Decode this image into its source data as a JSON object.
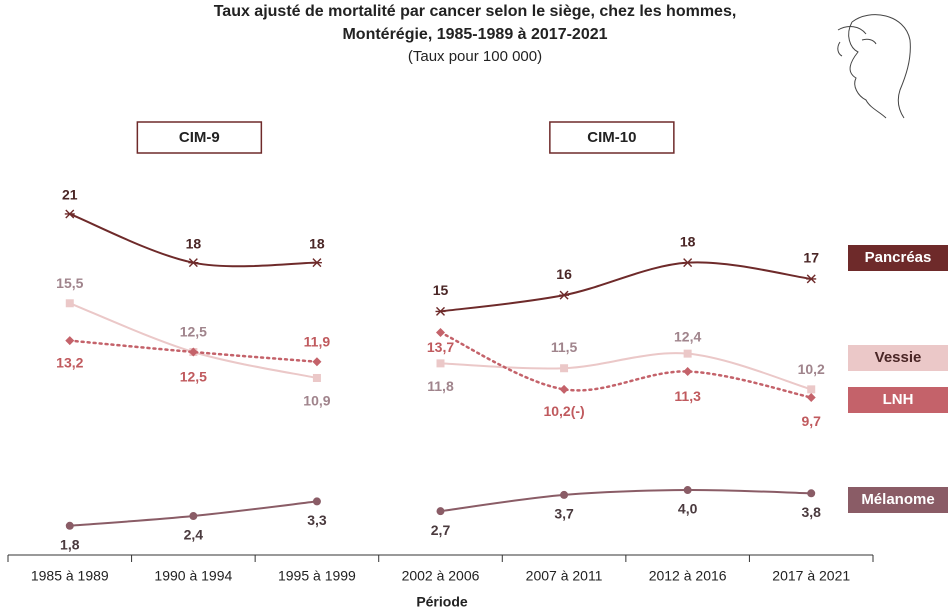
{
  "chart_data": {
    "type": "line",
    "title": [
      "Taux ajusté de mortalité par cancer selon le siège, chez les hommes,",
      "Montérégie, 1985-1989 à 2017-2021"
    ],
    "subtitle": "(Taux pour 100 000)",
    "x_label": "Période",
    "categories": [
      "1985 à 1989",
      "1990 à 1994",
      "1995 à 1999",
      "2002 à 2006",
      "2007 à 2011",
      "2012 à 2016",
      "2017 à 2021"
    ],
    "groups": [
      {
        "label": "CIM-9",
        "count": 3
      },
      {
        "label": "CIM-10",
        "count": 4
      }
    ],
    "ylim": [
      0,
      25
    ],
    "smooth": true,
    "series": [
      {
        "name": "Pancréas",
        "color": "#6e2a2a",
        "label_color": "#4a2626",
        "legend_text_color": "#ffffff",
        "marker": "asterisk",
        "dash": "solid",
        "values": [
          21,
          18,
          18,
          15,
          16,
          18,
          17
        ],
        "value_labels": [
          "21",
          "18",
          "18",
          "15",
          "16",
          "18",
          "17"
        ]
      },
      {
        "name": "Vessie",
        "color": "#ebc8c8",
        "label_color": "#a0848c",
        "legend_text_color": "#4a2626",
        "marker": "square",
        "dash": "solid",
        "values": [
          15.5,
          12.5,
          10.9,
          11.8,
          11.5,
          12.4,
          10.2
        ],
        "value_labels": [
          "15,5",
          "12,5",
          "10,9",
          "11,8",
          "11,5",
          "12,4",
          "10,2"
        ]
      },
      {
        "name": "LNH",
        "color": "#c4626a",
        "label_color": "#c05a5e",
        "legend_text_color": "#ffffff",
        "marker": "diamond",
        "dash": "dotted",
        "values": [
          13.2,
          12.5,
          11.9,
          13.7,
          10.2,
          11.3,
          9.7
        ],
        "value_labels": [
          "13,2",
          "12,5",
          "11,9",
          "13,7",
          "10,2(-)",
          "11,3",
          "9,7"
        ]
      },
      {
        "name": "Mélanome",
        "color": "#8a5c66",
        "label_color": "#4a3a3e",
        "legend_text_color": "#ffffff",
        "marker": "circle",
        "dash": "solid",
        "values": [
          1.8,
          2.4,
          3.3,
          2.7,
          3.7,
          4.0,
          3.8
        ],
        "value_labels": [
          "1,8",
          "2,4",
          "3,3",
          "2,7",
          "3,7",
          "4,0",
          "3,8"
        ]
      }
    ]
  }
}
